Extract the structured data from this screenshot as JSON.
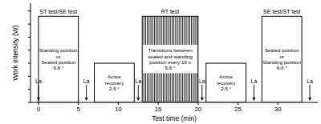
{
  "chart_data": {
    "type": "bar",
    "x_label": "Test time (min)",
    "y_label": "Work intensity (W)",
    "xlim": [
      -1,
      35
    ],
    "xticks": [
      0,
      5,
      10,
      15,
      20,
      25,
      30
    ],
    "ylim": [
      0,
      380
    ],
    "yticks": [
      0,
      50,
      100,
      150,
      200,
      250,
      300,
      350
    ],
    "tick_labels": "x",
    "stages": [
      {
        "label": "ST test/SE test",
        "text": [
          "Standing position",
          "or",
          "Seated position",
          "6.8 °"
        ],
        "start": 0,
        "end": 5,
        "value": 330,
        "type": "plain"
      },
      {
        "text": [
          "Active",
          "recovery",
          "2.5 °"
        ],
        "start": 7,
        "end": 12,
        "value": 150,
        "type": "plain"
      },
      {
        "label": "RT test",
        "text": [
          "Transitions between",
          "seated and standing",
          "position every 10 s",
          "6.8 °"
        ],
        "start": 13,
        "end": 20,
        "value": 330,
        "type": "striped"
      },
      {
        "text": [
          "Active",
          "recovery",
          "2.5 °"
        ],
        "start": 21,
        "end": 26,
        "value": 150,
        "type": "plain"
      },
      {
        "label": "SE test/ST test",
        "text": [
          "Seated position",
          "or",
          "Standing position",
          "6.8 °"
        ],
        "start": 28,
        "end": 33,
        "value": 330,
        "type": "plain"
      }
    ],
    "la_samples": {
      "label": "La",
      "x": [
        0,
        6,
        12.5,
        20.5,
        27,
        34
      ]
    }
  }
}
